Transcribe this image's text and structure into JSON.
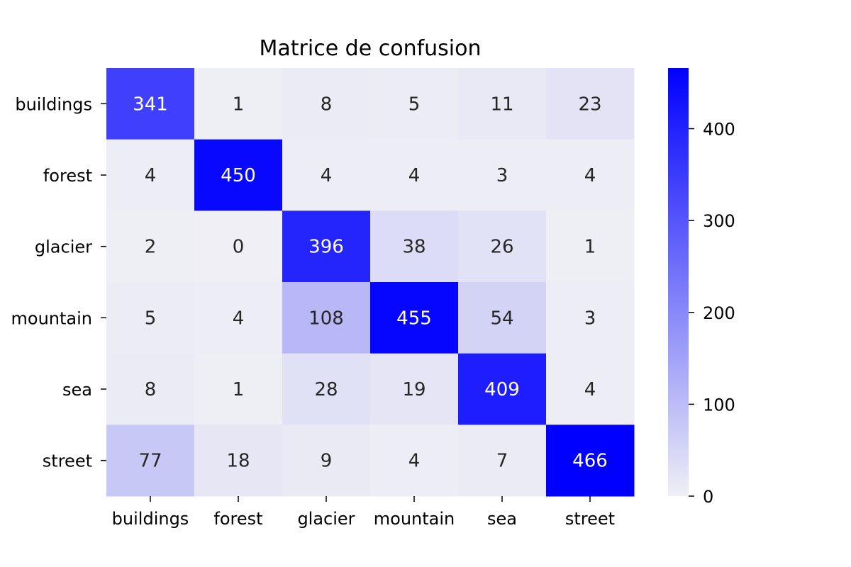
{
  "chart_data": {
    "type": "heatmap",
    "title": "Matrice de confusion",
    "xlabel": "",
    "ylabel": "",
    "x_categories": [
      "buildings",
      "forest",
      "glacier",
      "mountain",
      "sea",
      "street"
    ],
    "y_categories": [
      "buildings",
      "forest",
      "glacier",
      "mountain",
      "sea",
      "street"
    ],
    "values": [
      [
        341,
        1,
        8,
        5,
        11,
        23
      ],
      [
        4,
        450,
        4,
        4,
        3,
        4
      ],
      [
        2,
        0,
        396,
        38,
        26,
        1
      ],
      [
        5,
        4,
        108,
        455,
        54,
        3
      ],
      [
        8,
        1,
        28,
        19,
        409,
        4
      ],
      [
        77,
        18,
        9,
        4,
        7,
        466
      ]
    ],
    "colorbar": {
      "min": 0,
      "max": 466,
      "ticks": [
        0,
        100,
        200,
        300,
        400
      ],
      "color_low": "#efeff5",
      "color_high": "#0000ff"
    },
    "text_color_dark": "#262626",
    "text_color_light": "#ffffff"
  }
}
